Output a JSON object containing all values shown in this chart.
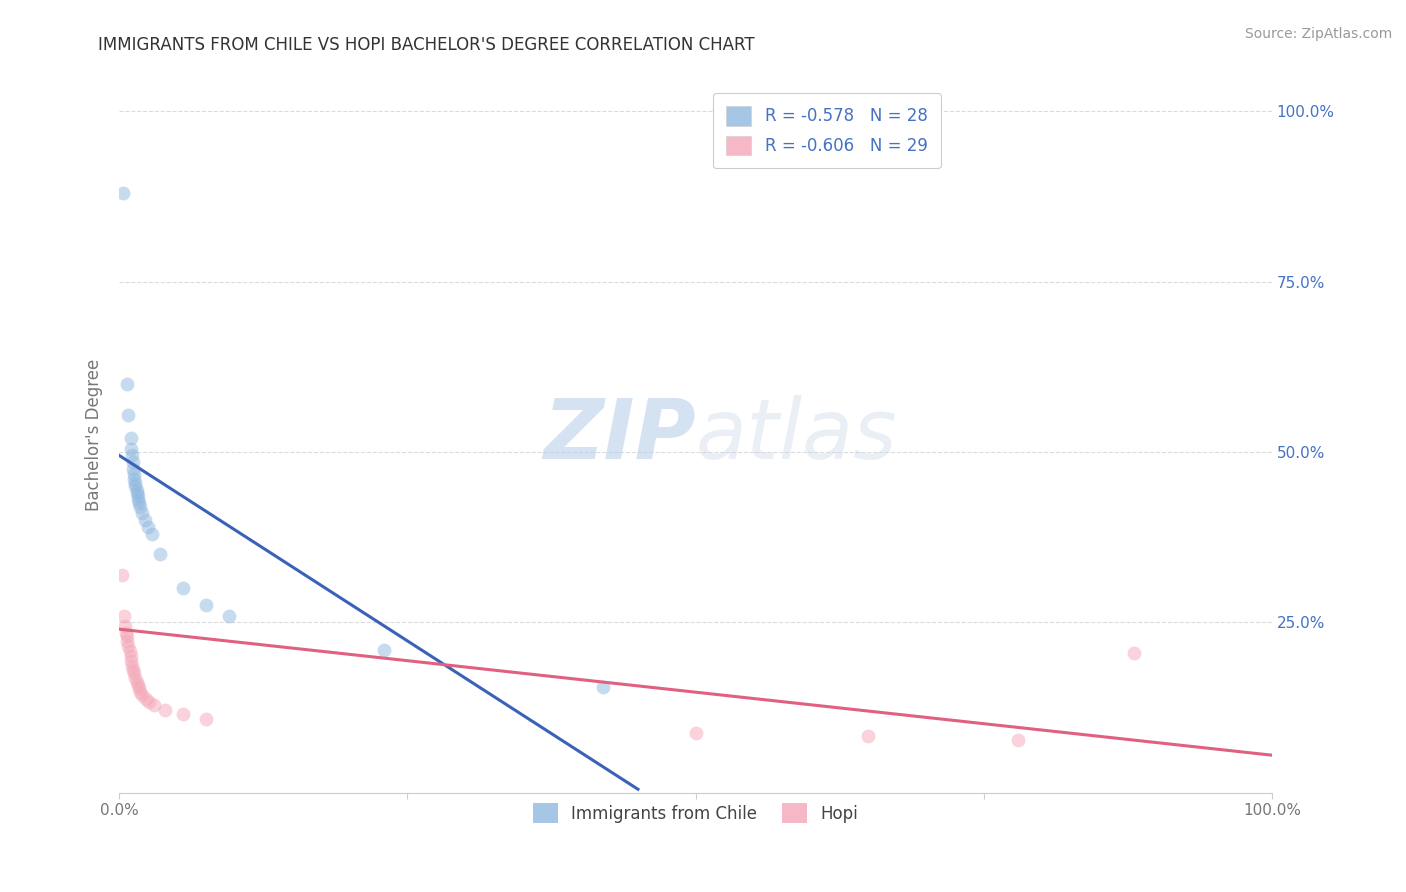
{
  "title": "IMMIGRANTS FROM CHILE VS HOPI BACHELOR'S DEGREE CORRELATION CHART",
  "source": "Source: ZipAtlas.com",
  "ylabel": "Bachelor's Degree",
  "legend_entries": [
    {
      "label": "Immigrants from Chile",
      "R": "-0.578",
      "N": "28",
      "color": "#aac4e8"
    },
    {
      "label": "Hopi",
      "R": "-0.606",
      "N": "29",
      "color": "#f4a7b9"
    }
  ],
  "watermark_zip": "ZIP",
  "watermark_atlas": "atlas",
  "blue_scatter": [
    [
      0.003,
      0.88
    ],
    [
      0.007,
      0.6
    ],
    [
      0.008,
      0.555
    ],
    [
      0.01,
      0.52
    ],
    [
      0.01,
      0.505
    ],
    [
      0.011,
      0.495
    ],
    [
      0.012,
      0.485
    ],
    [
      0.012,
      0.475
    ],
    [
      0.013,
      0.468
    ],
    [
      0.013,
      0.46
    ],
    [
      0.014,
      0.455
    ],
    [
      0.014,
      0.45
    ],
    [
      0.015,
      0.445
    ],
    [
      0.015,
      0.44
    ],
    [
      0.016,
      0.435
    ],
    [
      0.016,
      0.43
    ],
    [
      0.017,
      0.425
    ],
    [
      0.018,
      0.42
    ],
    [
      0.02,
      0.41
    ],
    [
      0.022,
      0.4
    ],
    [
      0.025,
      0.39
    ],
    [
      0.028,
      0.38
    ],
    [
      0.035,
      0.35
    ],
    [
      0.055,
      0.3
    ],
    [
      0.075,
      0.275
    ],
    [
      0.095,
      0.26
    ],
    [
      0.23,
      0.21
    ],
    [
      0.42,
      0.155
    ]
  ],
  "pink_scatter": [
    [
      0.002,
      0.32
    ],
    [
      0.004,
      0.26
    ],
    [
      0.005,
      0.245
    ],
    [
      0.006,
      0.235
    ],
    [
      0.007,
      0.23
    ],
    [
      0.007,
      0.222
    ],
    [
      0.008,
      0.215
    ],
    [
      0.009,
      0.208
    ],
    [
      0.01,
      0.2
    ],
    [
      0.01,
      0.193
    ],
    [
      0.011,
      0.186
    ],
    [
      0.012,
      0.18
    ],
    [
      0.013,
      0.175
    ],
    [
      0.014,
      0.168
    ],
    [
      0.015,
      0.163
    ],
    [
      0.016,
      0.158
    ],
    [
      0.017,
      0.153
    ],
    [
      0.018,
      0.148
    ],
    [
      0.02,
      0.143
    ],
    [
      0.023,
      0.138
    ],
    [
      0.026,
      0.133
    ],
    [
      0.03,
      0.128
    ],
    [
      0.04,
      0.122
    ],
    [
      0.055,
      0.115
    ],
    [
      0.075,
      0.108
    ],
    [
      0.5,
      0.088
    ],
    [
      0.65,
      0.083
    ],
    [
      0.78,
      0.078
    ],
    [
      0.88,
      0.205
    ]
  ],
  "blue_line": [
    [
      0.0,
      0.495
    ],
    [
      0.45,
      0.005
    ]
  ],
  "pink_line": [
    [
      0.0,
      0.24
    ],
    [
      1.0,
      0.055
    ]
  ],
  "xlim": [
    0,
    1.0
  ],
  "ylim": [
    0,
    1.05
  ],
  "yticks": [
    0.0,
    0.25,
    0.5,
    0.75,
    1.0
  ],
  "right_yticklabels": [
    "",
    "25.0%",
    "50.0%",
    "75.0%",
    "100.0%"
  ],
  "xticks": [
    0.0,
    0.25,
    0.5,
    0.75,
    1.0
  ],
  "xticklabels": [
    "0.0%",
    "",
    "",
    "",
    "100.0%"
  ],
  "background_color": "#ffffff",
  "grid_color": "#cccccc",
  "scatter_size": 100,
  "blue_color": "#90b8e0",
  "pink_color": "#f4a7b9",
  "blue_line_color": "#3a62b8",
  "pink_line_color": "#e06080",
  "title_color": "#333333",
  "legend_text_color": "#4472c4",
  "axis_label_color": "#777777"
}
